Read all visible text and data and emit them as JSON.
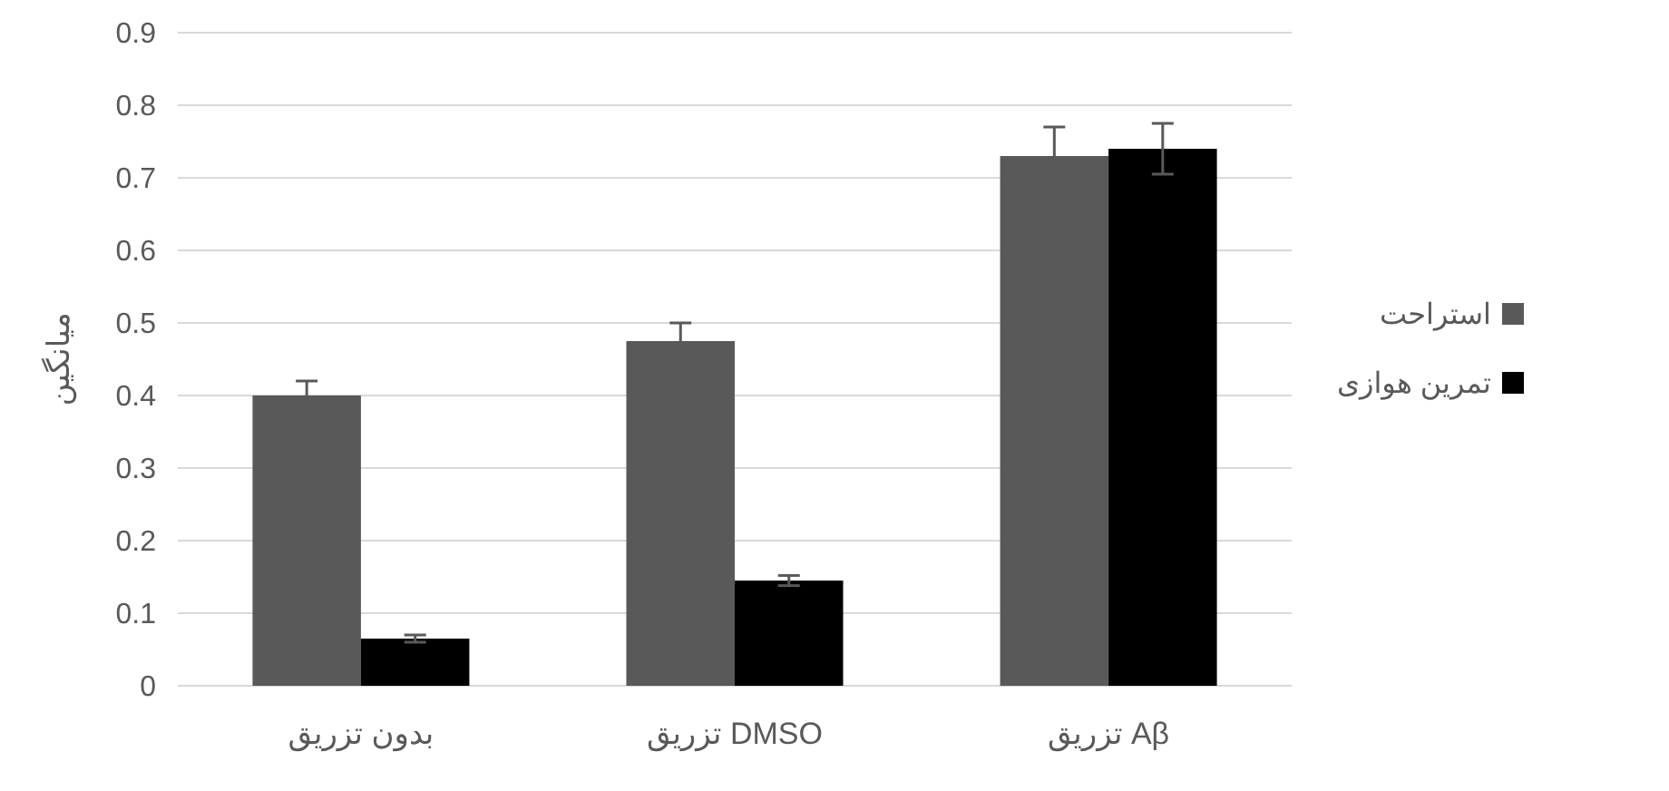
{
  "chart_data": {
    "type": "bar",
    "ylabel": "میانگین",
    "categories": [
      "بدون تزریق",
      "تزریق DMSO",
      "تزریق Aβ"
    ],
    "series": [
      {
        "name": "استراحت",
        "color": "#595959",
        "values": [
          0.4,
          0.475,
          0.73
        ],
        "errors": [
          0.02,
          0.025,
          0.04
        ]
      },
      {
        "name": "تمرین هوازی",
        "color": "#000000",
        "values": [
          0.065,
          0.145,
          0.74
        ],
        "errors": [
          0.005,
          0.007,
          0.035
        ]
      }
    ],
    "ylim": [
      0,
      0.9
    ],
    "yticks": [
      0,
      0.1,
      0.2,
      0.3,
      0.4,
      0.5,
      0.6,
      0.7,
      0.8,
      0.9
    ],
    "grid": "y",
    "legend": "right"
  }
}
